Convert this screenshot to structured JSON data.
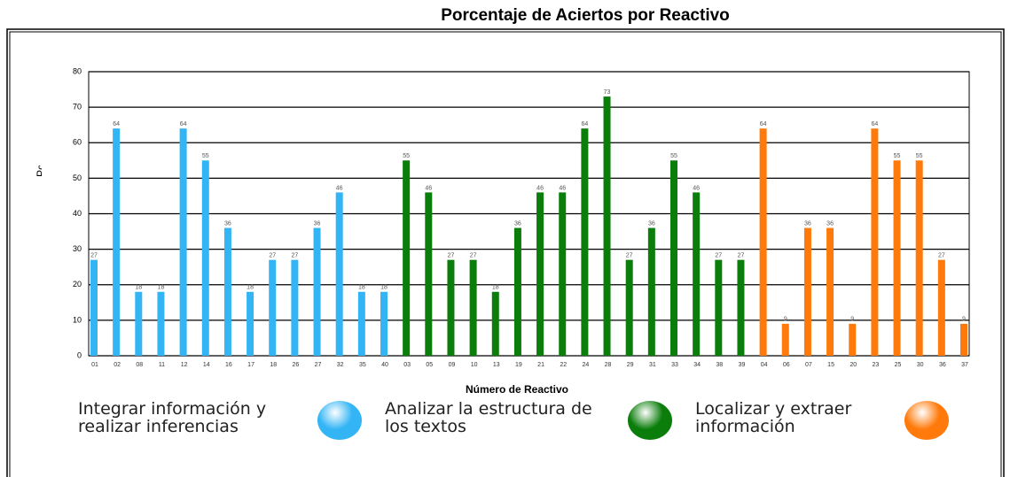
{
  "chart_data": {
    "type": "bar",
    "title": "Porcentaje de Aciertos por Reactivo",
    "y_label": "Porcentaje de Aciertos",
    "x_label": "Número de Reactivo",
    "ylim": [
      0,
      80
    ],
    "yticks": [
      0,
      10,
      20,
      30,
      40,
      50,
      60,
      70,
      80
    ],
    "grid": true,
    "series": [
      {
        "name": "Integrar información y realizar inferencias",
        "color": "#33b5f5",
        "categories": [
          "01",
          "02",
          "08",
          "11",
          "12",
          "14",
          "16",
          "17",
          "18",
          "26",
          "27",
          "32",
          "35",
          "40"
        ],
        "values": [
          27,
          64,
          18,
          18,
          64,
          55,
          36,
          18,
          27,
          27,
          36,
          46,
          18,
          18
        ]
      },
      {
        "name": "Analizar la estructura de los textos",
        "color": "#0a7d0a",
        "categories": [
          "03",
          "05",
          "09",
          "10",
          "13",
          "19",
          "21",
          "22",
          "24",
          "28",
          "29",
          "31",
          "33",
          "34",
          "38",
          "39"
        ],
        "values": [
          55,
          46,
          27,
          27,
          18,
          36,
          46,
          46,
          64,
          73,
          27,
          36,
          55,
          46,
          27,
          27
        ]
      },
      {
        "name": "Localizar y extraer información",
        "color": "#ff7a0a",
        "categories": [
          "04",
          "06",
          "07",
          "15",
          "20",
          "23",
          "25",
          "30",
          "36",
          "37"
        ],
        "values": [
          64,
          9,
          36,
          36,
          9,
          64,
          55,
          55,
          27,
          9
        ]
      }
    ]
  }
}
